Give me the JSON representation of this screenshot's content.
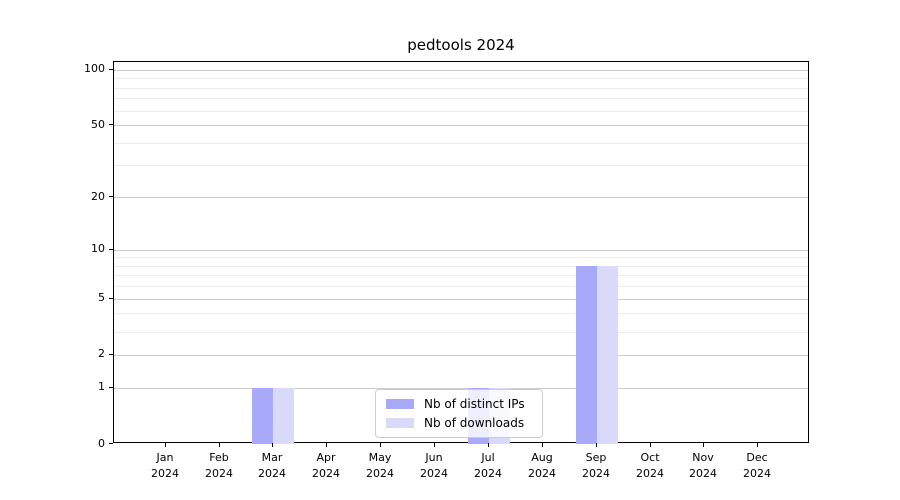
{
  "title": "pedtools 2024",
  "chart_data": {
    "type": "bar",
    "title": "pedtools 2024",
    "xlabel": "",
    "ylabel": "",
    "categories": [
      "Jan",
      "Feb",
      "Mar",
      "Apr",
      "May",
      "Jun",
      "Jul",
      "Aug",
      "Sep",
      "Oct",
      "Nov",
      "Dec"
    ],
    "category_year": "2024",
    "series": [
      {
        "name": "Nb of distinct IPs",
        "color": "#a9a9f9",
        "values": [
          0,
          0,
          1,
          0,
          0,
          0,
          1,
          0,
          8,
          0,
          0,
          0
        ]
      },
      {
        "name": "Nb of downloads",
        "color": "#d9d9f9",
        "values": [
          0,
          0,
          1,
          0,
          0,
          0,
          1,
          0,
          8,
          0,
          0,
          0
        ]
      }
    ],
    "yscale": "log1p",
    "ylim": [
      0,
      110
    ],
    "yticks": [
      0,
      1,
      2,
      5,
      10,
      20,
      50,
      100
    ],
    "minor_yticks": [
      3,
      4,
      6,
      7,
      8,
      9,
      30,
      40,
      60,
      70,
      80,
      90
    ],
    "grid": true,
    "legend_position": "lower-center"
  },
  "colors": {
    "bar_dark": "#a9a9f9",
    "bar_light": "#d9d9f9",
    "grid_major": "#cccccc",
    "grid_minor": "#ebebeb",
    "spine": "#000000",
    "background": "#ffffff"
  }
}
